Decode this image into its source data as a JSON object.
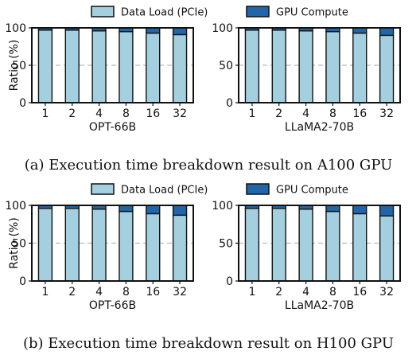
{
  "colors": {
    "data_load": "#a4cfdf",
    "gpu_compute": "#2266aa",
    "edge": "#111111",
    "grid": "#bbbbbb"
  },
  "legend": [
    {
      "label": "Data Load (PCIe)",
      "color": "#a4cfdf"
    },
    {
      "label": "GPU Compute",
      "color": "#2266aa"
    }
  ],
  "captions": {
    "a": "(a)  Execution time breakdown result on A100 GPU",
    "b": "(b)  Execution time breakdown result on H100 GPU"
  },
  "chart_data": [
    {
      "type": "bar",
      "stacked": true,
      "group": "a",
      "categories": [
        "1",
        "2",
        "4",
        "8",
        "16",
        "32"
      ],
      "series": [
        {
          "name": "Data Load (PCIe)",
          "values": [
            97,
            97,
            96,
            95,
            93,
            91
          ]
        },
        {
          "name": "GPU Compute",
          "values": [
            3,
            3,
            4,
            5,
            7,
            9
          ]
        }
      ],
      "xlabel": "OPT-66B",
      "ylabel": "Ratio (%)",
      "ylim": [
        0,
        100
      ],
      "yticks": [
        0,
        50,
        100
      ],
      "grid": "y-dashed"
    },
    {
      "type": "bar",
      "stacked": true,
      "group": "a",
      "categories": [
        "1",
        "2",
        "4",
        "8",
        "16",
        "32"
      ],
      "series": [
        {
          "name": "Data Load (PCIe)",
          "values": [
            97,
            97,
            96,
            95,
            93,
            90
          ]
        },
        {
          "name": "GPU Compute",
          "values": [
            3,
            3,
            4,
            5,
            7,
            10
          ]
        }
      ],
      "xlabel": "LLaMA2-70B",
      "ylabel": "",
      "ylim": [
        0,
        100
      ],
      "yticks": [
        0,
        50,
        100
      ],
      "grid": "y-dashed"
    },
    {
      "type": "bar",
      "stacked": true,
      "group": "b",
      "categories": [
        "1",
        "2",
        "4",
        "8",
        "16",
        "32"
      ],
      "series": [
        {
          "name": "Data Load (PCIe)",
          "values": [
            96,
            96,
            95,
            92,
            89,
            87
          ]
        },
        {
          "name": "GPU Compute",
          "values": [
            4,
            4,
            5,
            8,
            11,
            13
          ]
        }
      ],
      "xlabel": "OPT-66B",
      "ylabel": "Ratio (%)",
      "ylim": [
        0,
        100
      ],
      "yticks": [
        0,
        50,
        100
      ],
      "grid": "y-dashed"
    },
    {
      "type": "bar",
      "stacked": true,
      "group": "b",
      "categories": [
        "1",
        "2",
        "4",
        "8",
        "16",
        "32"
      ],
      "series": [
        {
          "name": "Data Load (PCIe)",
          "values": [
            96,
            96,
            95,
            92,
            89,
            86
          ]
        },
        {
          "name": "GPU Compute",
          "values": [
            4,
            4,
            5,
            8,
            11,
            14
          ]
        }
      ],
      "xlabel": "LLaMA2-70B",
      "ylabel": "",
      "ylim": [
        0,
        100
      ],
      "yticks": [
        0,
        50,
        100
      ],
      "grid": "y-dashed"
    }
  ]
}
